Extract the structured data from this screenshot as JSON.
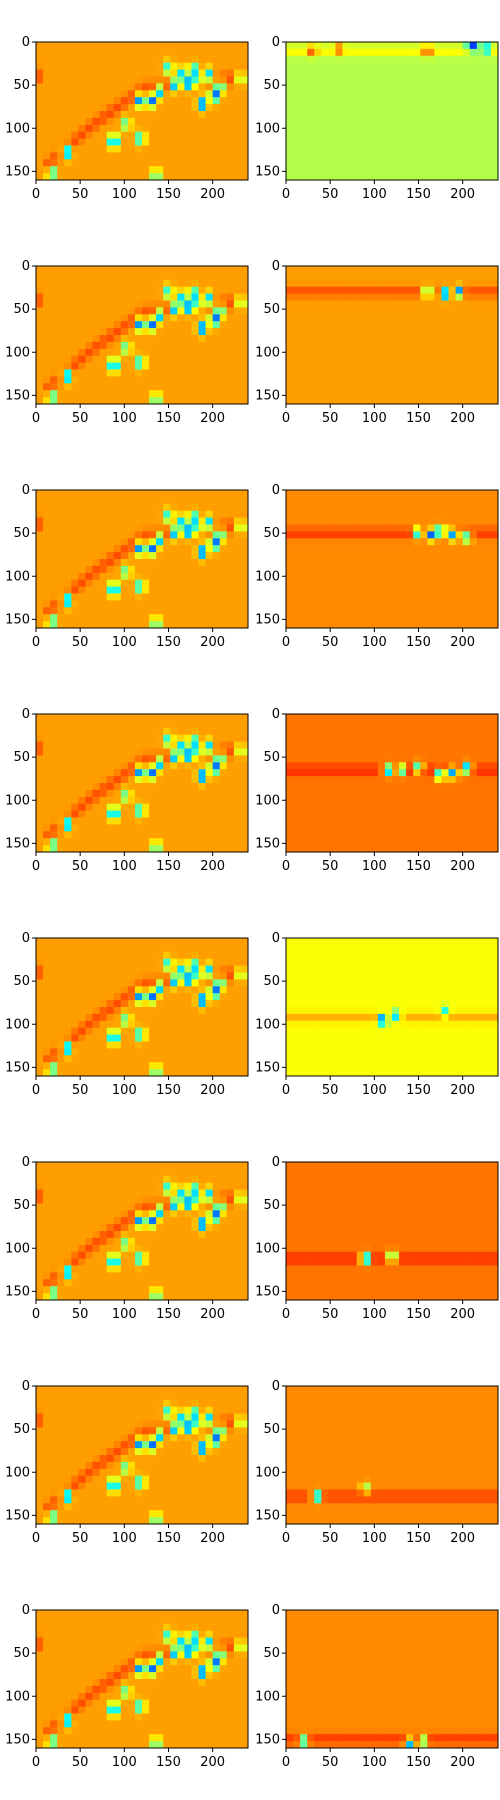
{
  "chart_data": {
    "type": "heatmap",
    "colormap": "jet",
    "layout": {
      "rows": 8,
      "cols": 2
    },
    "xlim": [
      0,
      240
    ],
    "ylim": [
      160,
      0
    ],
    "x_ticks": [
      0,
      50,
      100,
      150,
      200
    ],
    "y_ticks": [
      0,
      50,
      100,
      150
    ],
    "x_tick_labels": [
      "0",
      "50",
      "100",
      "150",
      "200"
    ],
    "y_tick_labels": [
      "0",
      "50",
      "100",
      "150"
    ],
    "left_column": {
      "description": "full wave field with a diagonal band of blobs",
      "background_value": 0.72,
      "band": [
        [
          5,
          150
        ],
        [
          60,
          100
        ],
        [
          120,
          55
        ],
        [
          200,
          45
        ],
        [
          240,
          40
        ]
      ],
      "blobs": [
        [
          18,
          152,
          0.35
        ],
        [
          35,
          128,
          0.2
        ],
        [
          88,
          115,
          0.1
        ],
        [
          102,
          95,
          0.4
        ],
        [
          118,
          112,
          0.3
        ],
        [
          130,
          68,
          0.15
        ],
        [
          140,
          58,
          0.3
        ],
        [
          150,
          30,
          0.35
        ],
        [
          158,
          50,
          0.2
        ],
        [
          165,
          38,
          0.3
        ],
        [
          172,
          48,
          0.15
        ],
        [
          178,
          33,
          0.2
        ],
        [
          183,
          45,
          0.3
        ],
        [
          188,
          72,
          0.15
        ],
        [
          195,
          38,
          0.3
        ],
        [
          202,
          62,
          0.1
        ],
        [
          208,
          52,
          0.3
        ],
        [
          232,
          42,
          0.4
        ],
        [
          118,
          68,
          0.2
        ],
        [
          136,
          155,
          0.35
        ]
      ]
    },
    "right_column": [
      {
        "row": 1,
        "background_value": 0.55,
        "y_band": 10,
        "x_range": [
          0,
          240
        ],
        "peaks": [
          [
            210,
            5,
            0.1
          ],
          [
            225,
            8,
            0.2
          ],
          [
            60,
            8,
            0.8
          ],
          [
            30,
            10,
            0.82
          ],
          [
            160,
            10,
            0.85
          ]
        ]
      },
      {
        "row": 2,
        "background_value": 0.72,
        "y_band": 30,
        "x_range": [
          0,
          240
        ],
        "peaks": [
          [
            160,
            30,
            0.35
          ],
          [
            180,
            32,
            0.1
          ],
          [
            195,
            30,
            0.2
          ]
        ]
      },
      {
        "row": 3,
        "background_value": 0.74,
        "y_band": 50,
        "x_range": [
          0,
          240
        ],
        "peaks": [
          [
            150,
            50,
            0.3
          ],
          [
            165,
            52,
            0.2
          ],
          [
            175,
            48,
            0.1
          ],
          [
            190,
            52,
            0.2
          ],
          [
            205,
            55,
            0.35
          ]
        ]
      },
      {
        "row": 4,
        "background_value": 0.76,
        "y_band": 65,
        "x_range": [
          0,
          240
        ],
        "peaks": [
          [
            115,
            65,
            0.2
          ],
          [
            130,
            65,
            0.3
          ],
          [
            150,
            62,
            0.35
          ],
          [
            175,
            70,
            0.2
          ],
          [
            190,
            68,
            0.2
          ],
          [
            205,
            63,
            0.2
          ]
        ]
      },
      {
        "row": 5,
        "background_value": 0.62,
        "y_band": 92,
        "x_range": [
          0,
          240
        ],
        "peaks": [
          [
            110,
            95,
            0.1
          ],
          [
            125,
            90,
            0.3
          ],
          [
            180,
            85,
            0.4
          ]
        ]
      },
      {
        "row": 6,
        "background_value": 0.76,
        "y_band": 112,
        "x_range": [
          0,
          240
        ],
        "peaks": [
          [
            90,
            112,
            0.1
          ],
          [
            120,
            110,
            0.3
          ]
        ]
      },
      {
        "row": 7,
        "background_value": 0.74,
        "y_band": 128,
        "x_range": [
          0,
          240
        ],
        "peaks": [
          [
            35,
            128,
            0.2
          ],
          [
            90,
            118,
            0.5
          ]
        ]
      },
      {
        "row": 8,
        "background_value": 0.74,
        "y_band": 150,
        "x_range": [
          0,
          240
        ],
        "peaks": [
          [
            20,
            152,
            0.3
          ],
          [
            140,
            155,
            0.3
          ],
          [
            155,
            152,
            0.4
          ]
        ]
      }
    ],
    "title": "",
    "xlabel": "",
    "ylabel": ""
  }
}
